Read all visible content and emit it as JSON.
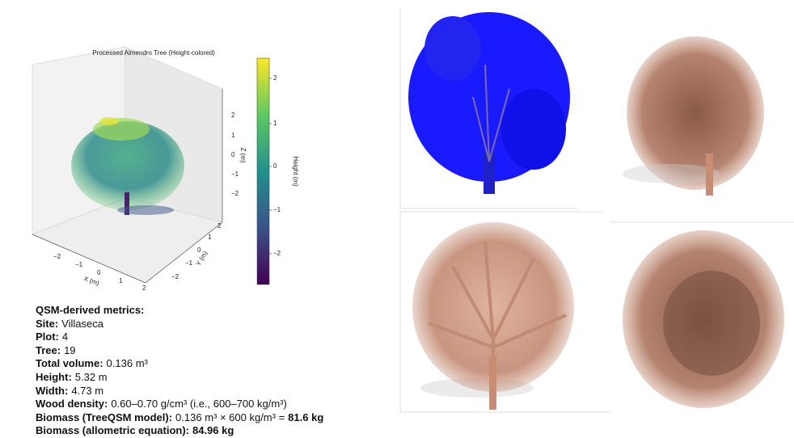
{
  "plot": {
    "title": "Processed Almendro Tree (Height-colored)",
    "x_label": "X (m)",
    "y_label": "Y (m)",
    "z_label": "Z (m)",
    "colorbar_label": "Height (m)",
    "x_ticks": [
      "−2",
      "−1",
      "0",
      "1",
      "2"
    ],
    "y_ticks": [
      "−2",
      "−1",
      "0",
      "1",
      "2"
    ],
    "z_ticks": [
      "2",
      "1",
      "0",
      "−1",
      "−2"
    ],
    "colorbar_ticks": [
      "2",
      "1",
      "0",
      "−1",
      "−2"
    ]
  },
  "metrics": {
    "heading": "QSM-derived metrics:",
    "items": [
      {
        "label": "Site:",
        "value": "Villaseca"
      },
      {
        "label": "Plot:",
        "value": "4"
      },
      {
        "label": "Tree:",
        "value": "19"
      },
      {
        "label": "Total volume:",
        "value": "0.136 m³"
      },
      {
        "label": "Height:",
        "value": "5.32 m"
      },
      {
        "label": "Width:",
        "value": "4.73 m"
      },
      {
        "label": "Wood density:",
        "value": "0.60–0.70 g/cm³ (i.e., 600–700 kg/m³)"
      },
      {
        "label": "Biomass (TreeQSM model):",
        "value": "0.136 m³ × 600 kg/m³ =",
        "result": "81.6 kg"
      },
      {
        "label": "Biomass (allometric equation):",
        "result": "84.96 kg"
      }
    ]
  }
}
